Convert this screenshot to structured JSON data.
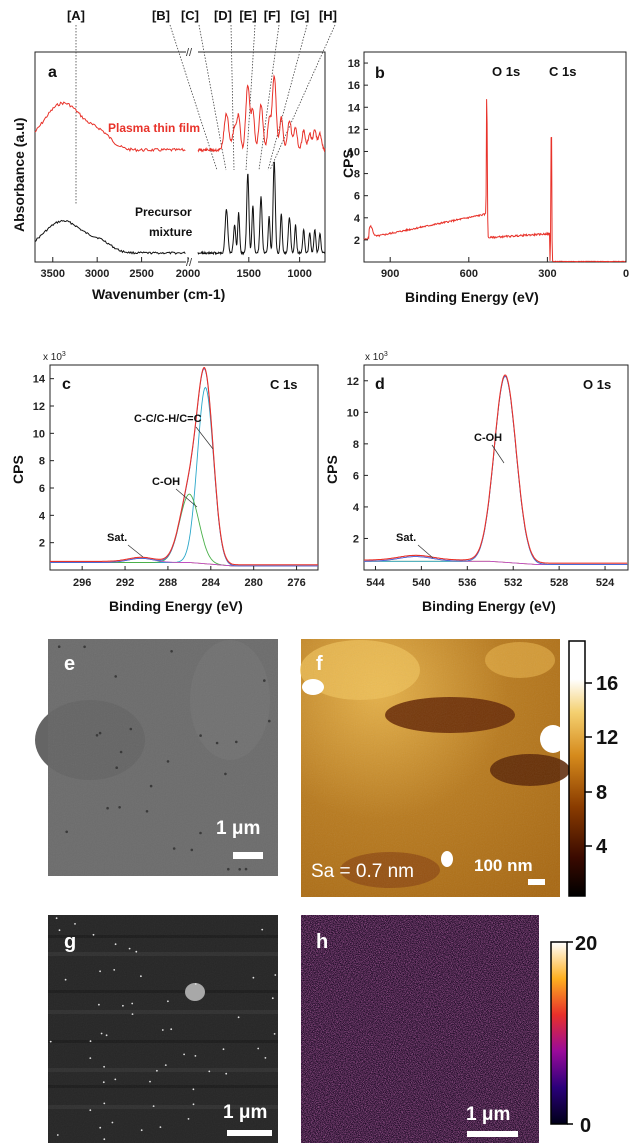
{
  "chart_data": [
    {
      "panel": "a",
      "type": "line",
      "xlabel": "Wavenumber (cm-1)",
      "ylabel": "Absorbance (a.u)",
      "x_ticks": [
        "3500",
        "3000",
        "2500",
        "2000",
        "1500",
        "1000"
      ],
      "axis_break": "//",
      "band_markers": [
        "[A]",
        "[B]",
        "[C]",
        "[D]",
        "[E]",
        "[F]",
        "[G]",
        "[H]"
      ],
      "series": [
        {
          "name": "Plasma thin film",
          "color": "#e8322a"
        },
        {
          "name": "Precursor mixture",
          "color": "#111111"
        }
      ],
      "precursor_label_lines": [
        "Precursor",
        "mixture"
      ]
    },
    {
      "panel": "b",
      "type": "line",
      "xlabel": "Binding Energy (eV)",
      "ylabel": "CPS",
      "x_ticks": [
        "900",
        "600",
        "300",
        "0"
      ],
      "y_ticks": [
        "2",
        "4",
        "6",
        "8",
        "10",
        "12",
        "14",
        "16",
        "18"
      ],
      "xlim": [
        1000,
        0
      ],
      "ylim": [
        0,
        18
      ],
      "annotations": [
        "O 1s",
        "C 1s"
      ],
      "color": "#e8322a"
    },
    {
      "panel": "c",
      "type": "line",
      "title": "C 1s",
      "multiplier": "x 10",
      "multiplier_exp": "3",
      "xlabel": "Binding Energy (eV)",
      "ylabel": "CPS",
      "x_ticks": [
        "296",
        "292",
        "288",
        "284",
        "280",
        "276"
      ],
      "y_ticks": [
        "2",
        "4",
        "6",
        "8",
        "10",
        "12",
        "14"
      ],
      "xlim": [
        299,
        274
      ],
      "ylim": [
        0,
        15
      ],
      "annotations": [
        "C-C/C-H/C=C",
        "C-OH",
        "Sat."
      ],
      "peaks": [
        {
          "name": "C-C/C-H/C=C",
          "x": 284.5,
          "y": 13.4
        },
        {
          "name": "C-OH",
          "x": 286.0,
          "y": 6.0
        }
      ]
    },
    {
      "panel": "d",
      "type": "line",
      "title": "O 1s",
      "multiplier": "x 10",
      "multiplier_exp": "3",
      "xlabel": "Binding Energy (eV)",
      "ylabel": "CPS",
      "x_ticks": [
        "544",
        "540",
        "536",
        "532",
        "528",
        "524"
      ],
      "y_ticks": [
        "2",
        "4",
        "6",
        "8",
        "10",
        "12"
      ],
      "xlim": [
        545,
        522
      ],
      "ylim": [
        0,
        13
      ],
      "annotations": [
        "C-OH",
        "Sat."
      ],
      "peaks": [
        {
          "name": "C-OH",
          "x": 532.7,
          "y": 12.2
        }
      ]
    }
  ],
  "images": {
    "e": {
      "label": "e",
      "scale": "1 μm"
    },
    "f": {
      "label": "f",
      "scale": "100 nm",
      "roughness": "Sa = 0.7 nm",
      "colorbar_ticks": [
        "16",
        "12",
        "8",
        "4"
      ]
    },
    "g": {
      "label": "g",
      "scale": "1 μm"
    },
    "h": {
      "label": "h",
      "scale": "1 μm",
      "colorbar_ticks": [
        "20",
        "0"
      ]
    }
  },
  "colors": {
    "plasma": "#e8322a",
    "precursor": "#111111"
  }
}
